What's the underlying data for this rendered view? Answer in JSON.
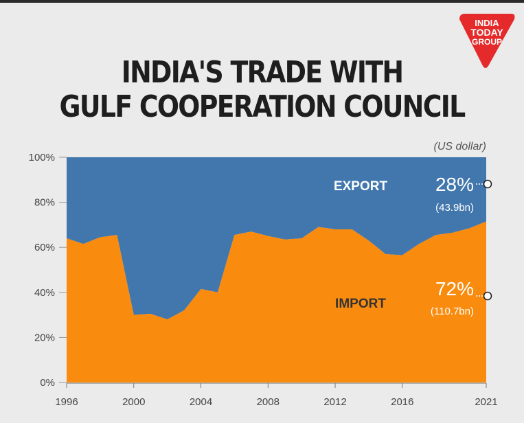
{
  "header": {
    "title_line1": "INDIA'S TRADE WITH",
    "title_line2": "GULF COOPERATION COUNCIL",
    "logo_line1": "INDIA",
    "logo_line2": "TODAY",
    "logo_line3": "GROUP"
  },
  "colors": {
    "export": "#4277ad",
    "import": "#f98b0e",
    "logo": "#e42a2a",
    "background": "#ebebeb"
  },
  "chart_data": {
    "type": "area",
    "stacked": "percent",
    "title": "INDIA'S TRADE WITH GULF COOPERATION COUNCIL",
    "unit_note": "(US dollar)",
    "x": [
      1996,
      1997,
      1998,
      1999,
      2000,
      2001,
      2002,
      2003,
      2004,
      2005,
      2006,
      2007,
      2008,
      2009,
      2010,
      2011,
      2012,
      2013,
      2014,
      2015,
      2016,
      2017,
      2018,
      2019,
      2020,
      2021
    ],
    "xticks": [
      "1996",
      "2000",
      "2004",
      "2008",
      "2012",
      "2016",
      "2021"
    ],
    "yticks": [
      "0%",
      "20%",
      "40%",
      "60%",
      "80%",
      "100%"
    ],
    "ylim": [
      0,
      100
    ],
    "series": [
      {
        "name": "IMPORT",
        "values": [
          64,
          61.5,
          64.5,
          65.5,
          30,
          30.5,
          28,
          32,
          41.5,
          40,
          65.5,
          67,
          65,
          63.5,
          64,
          69,
          68,
          68,
          63,
          57,
          56.5,
          61.5,
          65.5,
          66.5,
          68.5,
          71.5
        ]
      },
      {
        "name": "EXPORT",
        "values": [
          36,
          38.5,
          35.5,
          34.5,
          70,
          69.5,
          72,
          68,
          58.5,
          60,
          34.5,
          33,
          35,
          36.5,
          36,
          31,
          32,
          32,
          37,
          43,
          43.5,
          38.5,
          34.5,
          33.5,
          31.5,
          28.5
        ]
      }
    ],
    "annotations": [
      {
        "series": "EXPORT",
        "percent": "28%",
        "amount": "(43.9bn)",
        "value": 28
      },
      {
        "series": "IMPORT",
        "percent": "72%",
        "amount": "(110.7bn)",
        "value": 72
      }
    ]
  }
}
